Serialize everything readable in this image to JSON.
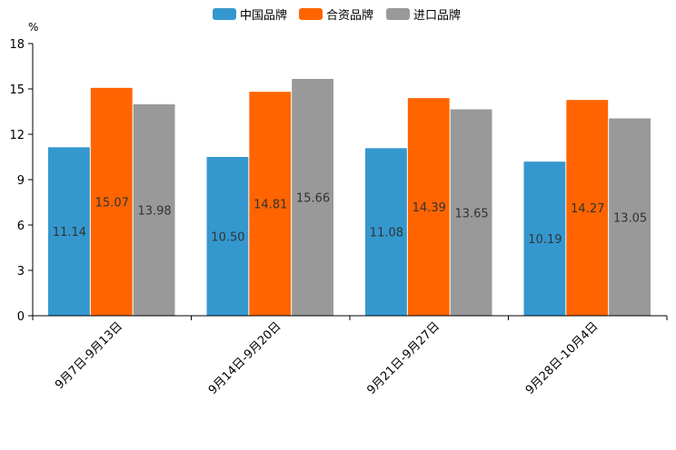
{
  "chart_data": {
    "type": "bar",
    "unit": "%",
    "categories": [
      "9月7日-9月13日",
      "9月14日-9月20日",
      "9月21日-9月27日",
      "9月28日-10月4日"
    ],
    "series": [
      {
        "name": "中国品牌",
        "color": "#3498cf",
        "values": [
          11.14,
          10.5,
          11.08,
          10.19
        ]
      },
      {
        "name": "合资品牌",
        "color": "#ff6400",
        "values": [
          15.07,
          14.81,
          14.39,
          14.27
        ]
      },
      {
        "name": "进口品牌",
        "color": "#999999",
        "values": [
          13.98,
          15.66,
          13.65,
          13.05
        ]
      }
    ],
    "ylim": [
      0,
      18
    ],
    "yticks": [
      0,
      3,
      6,
      9,
      12,
      15,
      18
    ],
    "legend_position": "top-center",
    "grid": false
  }
}
